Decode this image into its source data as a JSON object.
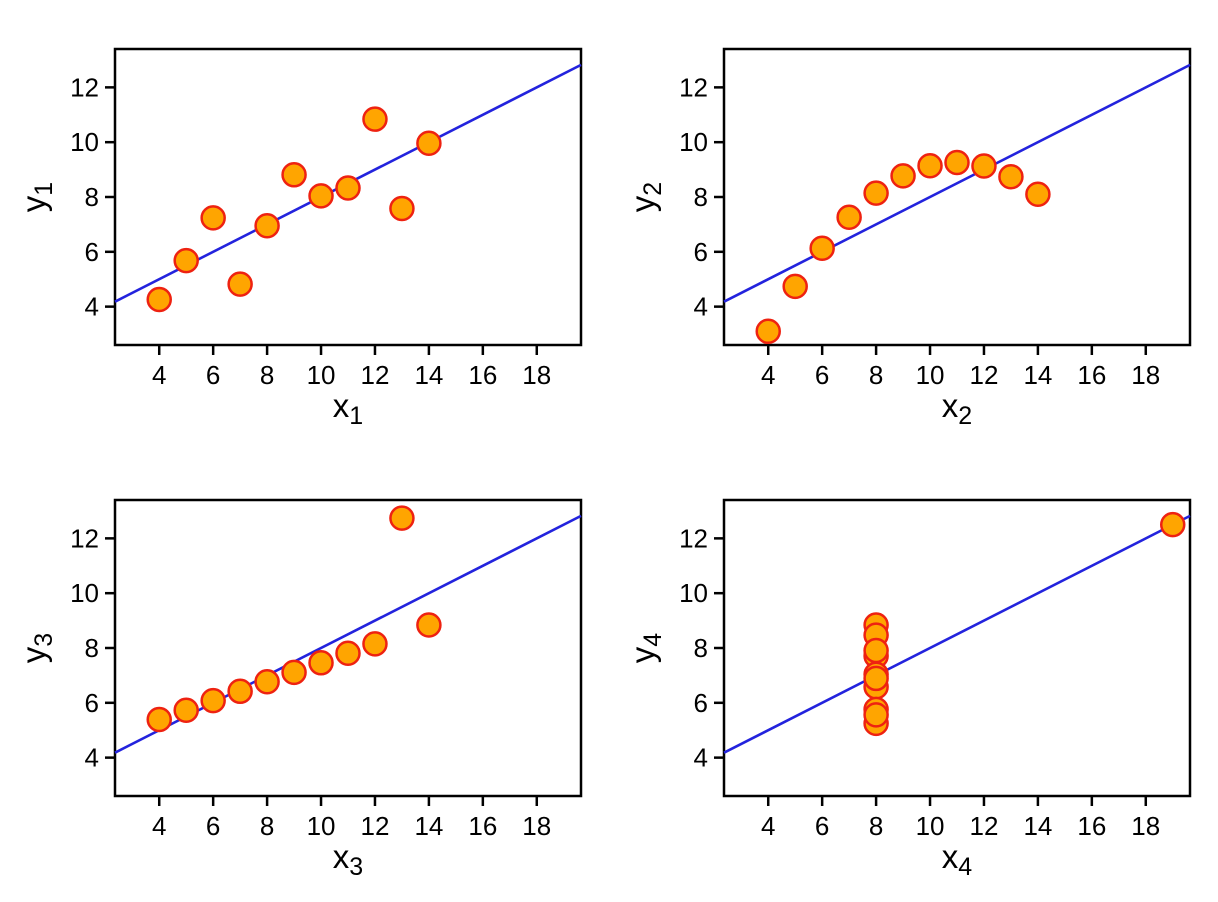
{
  "figure": {
    "background": "#ffffff",
    "box_color": "#000000",
    "text_color": "#000000",
    "point_fill": "#ffa500",
    "point_stroke": "#ee2211",
    "line_color": "#2323dd"
  },
  "chart_data": [
    {
      "type": "scatter",
      "title": "",
      "xlabel": "x",
      "xlabel_sub": "1",
      "ylabel": "y",
      "ylabel_sub": "1",
      "x": [
        10,
        8,
        13,
        9,
        11,
        14,
        6,
        4,
        12,
        7,
        5
      ],
      "y": [
        8.04,
        6.95,
        7.58,
        8.81,
        8.33,
        9.96,
        7.24,
        4.26,
        10.84,
        4.82,
        5.68
      ],
      "regression": {
        "intercept": 3.0,
        "slope": 0.5
      },
      "xticks": [
        4,
        6,
        8,
        10,
        12,
        14,
        16,
        18
      ],
      "yticks": [
        4,
        6,
        8,
        10,
        12
      ],
      "xlim": [
        2.36,
        19.64
      ],
      "ylim": [
        2.6,
        13.4
      ],
      "grid": false,
      "legend": "none"
    },
    {
      "type": "scatter",
      "title": "",
      "xlabel": "x",
      "xlabel_sub": "2",
      "ylabel": "y",
      "ylabel_sub": "2",
      "x": [
        10,
        8,
        13,
        9,
        11,
        14,
        6,
        4,
        12,
        7,
        5
      ],
      "y": [
        9.14,
        8.14,
        8.74,
        8.77,
        9.26,
        8.1,
        6.13,
        3.1,
        9.13,
        7.26,
        4.74
      ],
      "regression": {
        "intercept": 3.0,
        "slope": 0.5
      },
      "xticks": [
        4,
        6,
        8,
        10,
        12,
        14,
        16,
        18
      ],
      "yticks": [
        4,
        6,
        8,
        10,
        12
      ],
      "xlim": [
        2.36,
        19.64
      ],
      "ylim": [
        2.6,
        13.4
      ],
      "grid": false,
      "legend": "none"
    },
    {
      "type": "scatter",
      "title": "",
      "xlabel": "x",
      "xlabel_sub": "3",
      "ylabel": "y",
      "ylabel_sub": "3",
      "x": [
        10,
        8,
        13,
        9,
        11,
        14,
        6,
        4,
        12,
        7,
        5
      ],
      "y": [
        7.46,
        6.77,
        12.74,
        7.11,
        7.81,
        8.84,
        6.08,
        5.39,
        8.15,
        6.42,
        5.73
      ],
      "regression": {
        "intercept": 3.0,
        "slope": 0.5
      },
      "xticks": [
        4,
        6,
        8,
        10,
        12,
        14,
        16,
        18
      ],
      "yticks": [
        4,
        6,
        8,
        10,
        12
      ],
      "xlim": [
        2.36,
        19.64
      ],
      "ylim": [
        2.6,
        13.4
      ],
      "grid": false,
      "legend": "none"
    },
    {
      "type": "scatter",
      "title": "",
      "xlabel": "x",
      "xlabel_sub": "4",
      "ylabel": "y",
      "ylabel_sub": "4",
      "x": [
        8,
        8,
        8,
        8,
        8,
        8,
        8,
        19,
        8,
        8,
        8
      ],
      "y": [
        6.58,
        5.76,
        7.71,
        8.84,
        8.47,
        7.04,
        5.25,
        12.5,
        5.56,
        7.91,
        6.89
      ],
      "regression": {
        "intercept": 3.0,
        "slope": 0.5
      },
      "xticks": [
        4,
        6,
        8,
        10,
        12,
        14,
        16,
        18
      ],
      "yticks": [
        4,
        6,
        8,
        10,
        12
      ],
      "xlim": [
        2.36,
        19.64
      ],
      "ylim": [
        2.6,
        13.4
      ],
      "grid": false,
      "legend": "none"
    }
  ]
}
